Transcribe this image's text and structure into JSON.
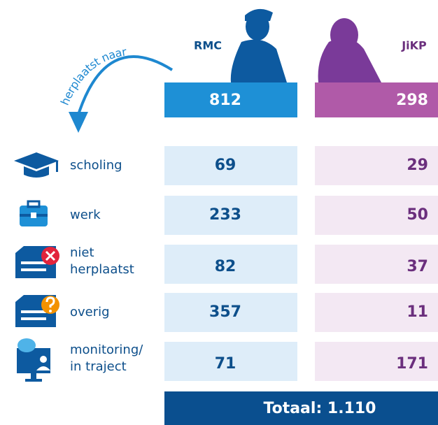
{
  "arc_label": "herplaatst naar",
  "columns": [
    {
      "label": "RMC",
      "total": 812
    },
    {
      "label": "JiKP",
      "total": 298
    }
  ],
  "rows": [
    {
      "label": [
        "scholing"
      ],
      "values": [
        69,
        29
      ]
    },
    {
      "label": [
        "werk"
      ],
      "values": [
        233,
        50
      ]
    },
    {
      "label": [
        "niet",
        "herplaatst"
      ],
      "values": [
        82,
        37
      ]
    },
    {
      "label": [
        "overig"
      ],
      "values": [
        357,
        11
      ]
    },
    {
      "label": [
        "monitoring/",
        "in traject"
      ],
      "values": [
        71,
        171
      ]
    }
  ],
  "total": "Totaal: 1.110"
}
